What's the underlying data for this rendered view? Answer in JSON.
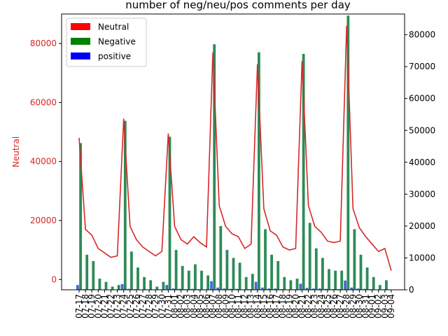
{
  "chart_data": {
    "type": "bar",
    "title": "number of neg/neu/pos comments per day",
    "ylabel_left": "Neutral",
    "ylabel_right": "",
    "colors": {
      "neutral_line": "#d62728",
      "negative_bar": "#2e8b57",
      "positive_bar": "#4169e1",
      "left_axis_text": "#d62728",
      "legend_neutral": "#ff0000",
      "legend_negative": "#008000",
      "legend_positive": "#0000ff"
    },
    "left_axis": {
      "ylim": [
        -3500,
        90000
      ],
      "ticks": [
        0,
        20000,
        40000,
        60000,
        80000
      ]
    },
    "right_axis": {
      "ylim": [
        0,
        86500
      ],
      "ticks": [
        0,
        10000,
        20000,
        30000,
        40000,
        50000,
        60000,
        70000,
        80000
      ]
    },
    "legend": {
      "placement": "upper-left",
      "items": [
        {
          "label": "Neutral",
          "color": "#ff0000"
        },
        {
          "label": "Negative",
          "color": "#008000"
        },
        {
          "label": "positive",
          "color": "#0000ff"
        }
      ]
    },
    "categories": [
      "07-17",
      "07-18",
      "07-19",
      "07-20",
      "07-21",
      "07-22",
      "07-23",
      "07-24",
      "07-25",
      "07-26",
      "07-27",
      "07-28",
      "07-29",
      "07-30",
      "07-31",
      "08-01",
      "08-02",
      "08-03",
      "08-04",
      "08-05",
      "08-06",
      "08-07",
      "08-08",
      "08-09",
      "08-10",
      "08-11",
      "08-12",
      "08-13",
      "08-14",
      "08-15",
      "08-16",
      "08-17",
      "08-18",
      "08-19",
      "08-20",
      "08-21",
      "08-22",
      "08-23",
      "08-24",
      "08-25",
      "08-26",
      "08-27",
      "08-28",
      "08-29",
      "08-30",
      "08-31",
      "09-01",
      "09-02",
      "09-03",
      "09-04"
    ],
    "series": [
      {
        "name": "Neutral",
        "axis": "left",
        "kind": "line",
        "values": [
          48000,
          17000,
          15000,
          10500,
          9000,
          7500,
          8000,
          54500,
          18000,
          13500,
          11000,
          9500,
          8000,
          9500,
          49500,
          18000,
          13500,
          12000,
          14500,
          12500,
          11000,
          77000,
          25000,
          18000,
          15500,
          14500,
          10500,
          12000,
          73000,
          24000,
          16500,
          15000,
          11000,
          10000,
          10500,
          74000,
          25000,
          18000,
          16000,
          13000,
          12500,
          13000,
          86000,
          24000,
          17500,
          14500,
          12000,
          9500,
          10500,
          3000
        ]
      },
      {
        "name": "Negative",
        "axis": "right",
        "kind": "bar",
        "values": [
          46000,
          11000,
          9000,
          3500,
          2500,
          1000,
          1500,
          53000,
          12000,
          7000,
          4000,
          3000,
          1000,
          2500,
          48000,
          12500,
          7500,
          6000,
          8000,
          6000,
          4500,
          77000,
          20000,
          12500,
          10000,
          8500,
          4000,
          5000,
          74500,
          19000,
          11000,
          9000,
          4000,
          3000,
          3500,
          74000,
          21000,
          13000,
          10000,
          6500,
          6000,
          6000,
          86000,
          19000,
          11000,
          7000,
          4000,
          1500,
          3000,
          0
        ]
      },
      {
        "name": "positive",
        "axis": "right",
        "kind": "bar",
        "values": [
          1500,
          200,
          200,
          100,
          100,
          50,
          50,
          1800,
          300,
          200,
          100,
          100,
          50,
          100,
          1500,
          400,
          300,
          200,
          300,
          200,
          150,
          2700,
          700,
          400,
          300,
          300,
          150,
          200,
          2500,
          700,
          400,
          400,
          200,
          100,
          150,
          1900,
          600,
          400,
          400,
          300,
          200,
          200,
          2900,
          700,
          400,
          300,
          200,
          100,
          150,
          50
        ]
      }
    ],
    "grid": false
  }
}
